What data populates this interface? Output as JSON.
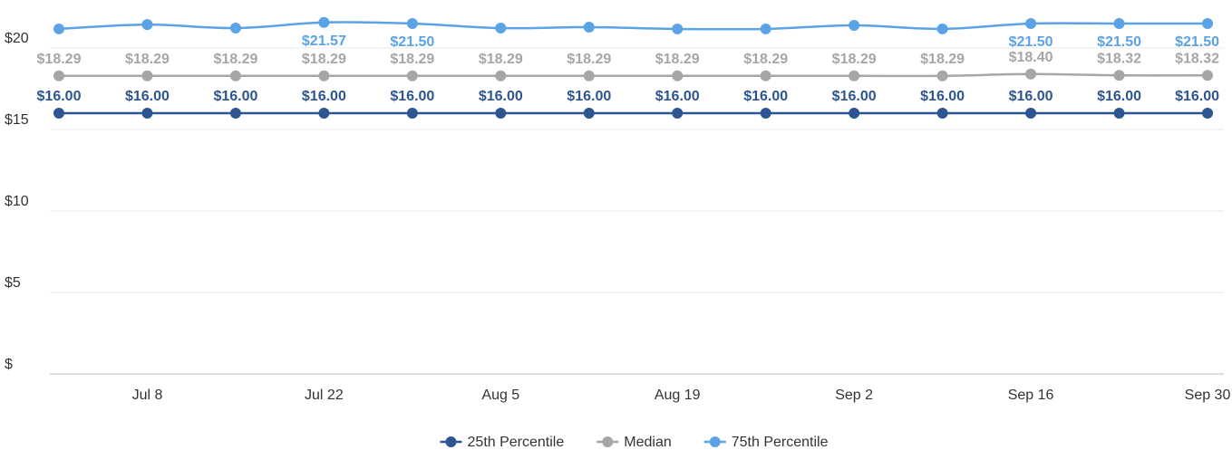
{
  "chart_data": {
    "type": "line",
    "categories": [
      null,
      "Jul 8",
      null,
      "Jul 22",
      null,
      "Aug 5",
      null,
      "Aug 19",
      null,
      "Sep 2",
      null,
      "Sep 16",
      null,
      "Sep 30"
    ],
    "ylim": [
      0,
      22
    ],
    "yticks": [
      {
        "value": 0,
        "label": "$"
      },
      {
        "value": 5,
        "label": "$5"
      },
      {
        "value": 10,
        "label": "$10"
      },
      {
        "value": 15,
        "label": "$15"
      },
      {
        "value": 20,
        "label": "$20"
      }
    ],
    "grid": true,
    "legend": "bottom",
    "series": [
      {
        "name": "25th Percentile",
        "color": "#2d5592",
        "values": [
          16,
          16,
          16,
          16,
          16,
          16,
          16,
          16,
          16,
          16,
          16,
          16,
          16,
          16
        ],
        "value_labels": [
          "$16.00",
          "$16.00",
          "$16.00",
          "$16.00",
          "$16.00",
          "$16.00",
          "$16.00",
          "$16.00",
          "$16.00",
          "$16.00",
          "$16.00",
          "$16.00",
          "$16.00",
          "$16.00"
        ]
      },
      {
        "name": "Median",
        "color": "#a6a6a8",
        "values": [
          18.29,
          18.29,
          18.29,
          18.29,
          18.29,
          18.29,
          18.29,
          18.29,
          18.29,
          18.29,
          18.29,
          18.4,
          18.32,
          18.32
        ],
        "value_labels": [
          "$18.29",
          "$18.29",
          "$18.29",
          "$18.29",
          "$18.29",
          "$18.29",
          "$18.29",
          "$18.29",
          "$18.29",
          "$18.29",
          "$18.29",
          "$18.40",
          "$18.32",
          "$18.32"
        ]
      },
      {
        "name": "75th Percentile",
        "color": "#5ba3e6",
        "values": [
          21.17,
          21.44,
          21.22,
          21.57,
          21.5,
          21.22,
          21.28,
          21.17,
          21.17,
          21.39,
          21.17,
          21.5,
          21.5,
          21.5
        ],
        "value_labels": [
          null,
          null,
          null,
          "$21.57",
          "$21.50",
          null,
          null,
          null,
          null,
          null,
          null,
          "$21.50",
          "$21.50",
          "$21.50"
        ]
      }
    ]
  }
}
